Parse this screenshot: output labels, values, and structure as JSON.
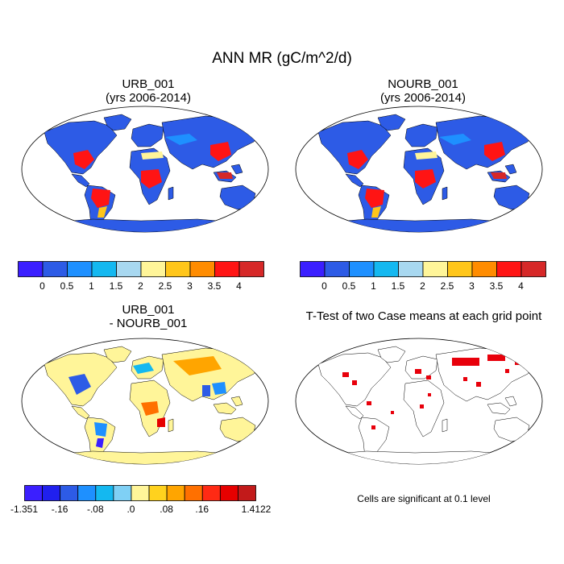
{
  "figure_title": "ANN MR (gC/m^2/d)",
  "panels": [
    {
      "id": "urb",
      "title_line1": "URB_001",
      "title_line2": "(yrs 2006-2014)"
    },
    {
      "id": "nourb",
      "title_line1": "NOURB_001",
      "title_line2": "(yrs 2006-2014)"
    },
    {
      "id": "diff",
      "title_line1": "URB_001",
      "title_line2": "- NOURB_001"
    },
    {
      "id": "ttest",
      "title_line1": "T-Test of two Case means at each grid point"
    }
  ],
  "note": "Cells are significant at 0.1 level",
  "colors": {
    "ocean": "#ffffff",
    "coast": "#000000",
    "significant": "#e8000b"
  },
  "chart_data": [
    {
      "type": "heatmap",
      "title": "URB_001 (yrs 2006-2014)",
      "description_units": "gC/m^2/d",
      "colorbar": {
        "colors": [
          "#3b1fff",
          "#2d5be6",
          "#1e90ff",
          "#14b8f0",
          "#a8d8f0",
          "#fff599",
          "#ffc61a",
          "#ff8c00",
          "#ff1414",
          "#d62828"
        ],
        "tick_labels": [
          "0",
          "0.5",
          "1",
          "1.5",
          "2",
          "2.5",
          "3",
          "3.5",
          "4"
        ]
      }
    },
    {
      "type": "heatmap",
      "title": "NOURB_001 (yrs 2006-2014)",
      "description_units": "gC/m^2/d",
      "colorbar": {
        "colors": [
          "#3b1fff",
          "#2d5be6",
          "#1e90ff",
          "#14b8f0",
          "#a8d8f0",
          "#fff599",
          "#ffc61a",
          "#ff8c00",
          "#ff1414",
          "#d62828"
        ],
        "tick_labels": [
          "0",
          "0.5",
          "1",
          "1.5",
          "2",
          "2.5",
          "3",
          "3.5",
          "4"
        ]
      }
    },
    {
      "type": "heatmap",
      "title": "URB_001 - NOURB_001",
      "colorbar": {
        "colors": [
          "#3b1fff",
          "#2020ee",
          "#2d5be6",
          "#1e90ff",
          "#14b8f0",
          "#7fd0f5",
          "#fff599",
          "#ffd21e",
          "#ffa500",
          "#ff7000",
          "#ff2a14",
          "#e60000",
          "#c21a1a"
        ],
        "tick_labels": [
          "-1.351",
          "-.16",
          "-.08",
          ".0",
          ".08",
          ".16",
          "1.4122"
        ]
      }
    },
    {
      "type": "heatmap",
      "title": "T-Test of two Case means at each grid point",
      "significance_level": 0.1
    }
  ]
}
